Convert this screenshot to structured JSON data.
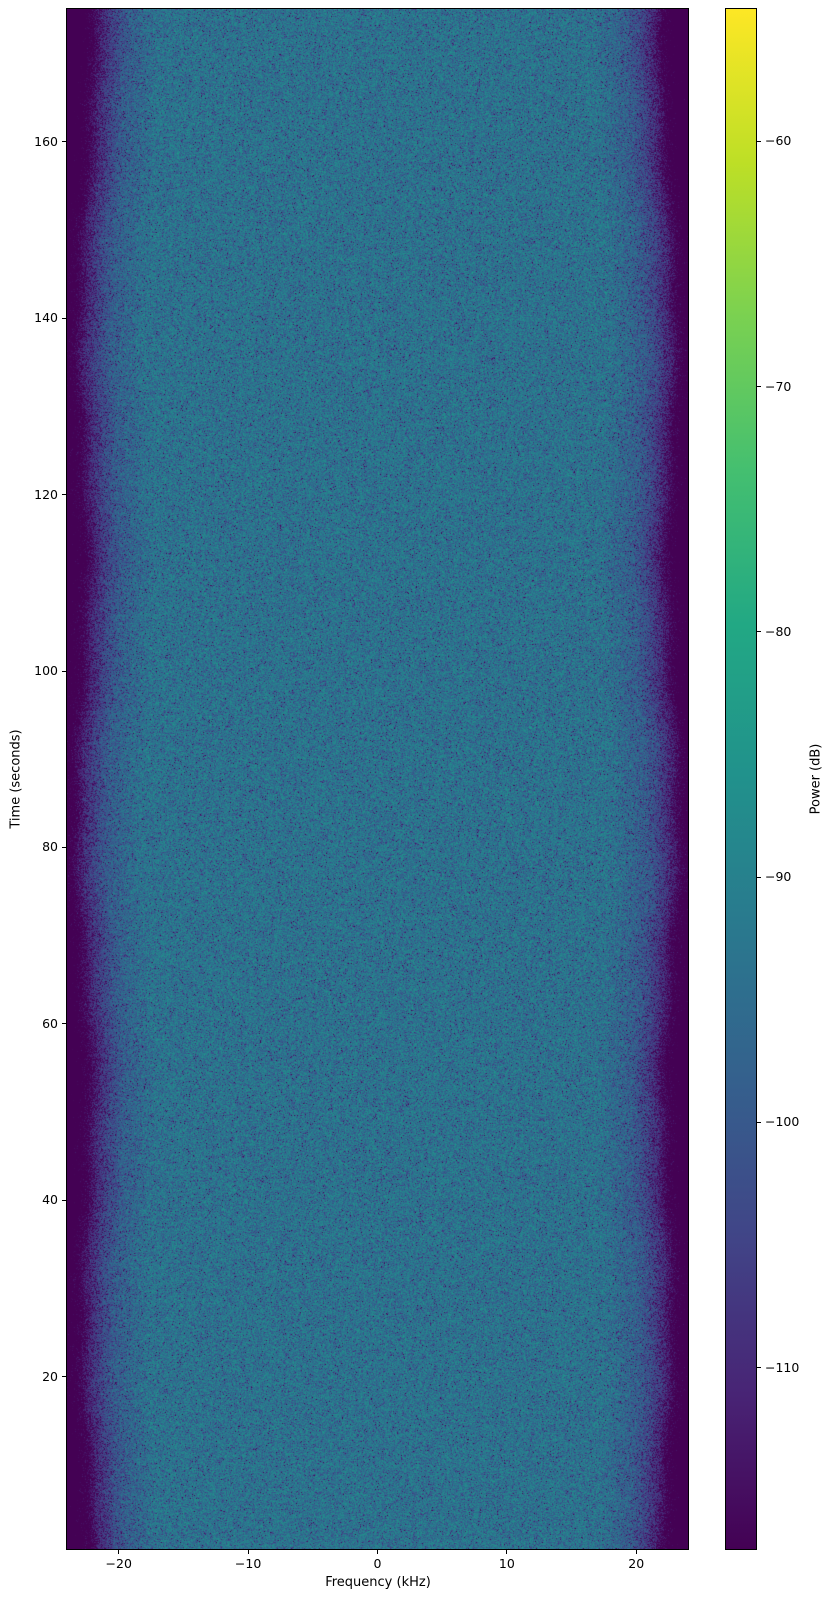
{
  "figure": {
    "background": "#ffffff"
  },
  "chart_data": {
    "type": "heatmap",
    "subtype": "spectrogram",
    "title": "",
    "xlabel": "Frequency (kHz)",
    "ylabel": "Time (seconds)",
    "xlim": [
      -24,
      24
    ],
    "ylim": [
      0.46,
      175.07
    ],
    "x_ticks": [
      -20,
      -10,
      0,
      10,
      20
    ],
    "y_ticks": [
      20,
      40,
      60,
      80,
      100,
      120,
      140,
      160
    ],
    "grid": false,
    "legend": false,
    "colorbar": {
      "label": "Power (dB)",
      "ticks": [
        -60,
        -70,
        -80,
        -90,
        -100,
        -110
      ],
      "vmin": -117.4,
      "vmax": -54.6,
      "position": "right"
    },
    "colormap": {
      "name": "viridis",
      "stops": [
        "#440154",
        "#482475",
        "#414487",
        "#355f8d",
        "#2a788e",
        "#21918c",
        "#22a884",
        "#44bf70",
        "#7ad151",
        "#bddf26",
        "#fde725"
      ]
    },
    "signal": {
      "description": "broadband noise passband centered at 0 kHz with rolloff at band edges",
      "passband_level_db": -91.8,
      "noise_floor_db": -124.8,
      "noise_model": "exponential (Rayleigh power) speckle, 10*log10(-ln U) dB deviation",
      "attenuation_profile_khz_db": [
        [
          0,
          0
        ],
        [
          17.5,
          0
        ],
        [
          20,
          5
        ],
        [
          21,
          10
        ],
        [
          22,
          17
        ],
        [
          22.8,
          26
        ],
        [
          24,
          33
        ]
      ],
      "edge_wobble_khz": 0.5
    }
  }
}
